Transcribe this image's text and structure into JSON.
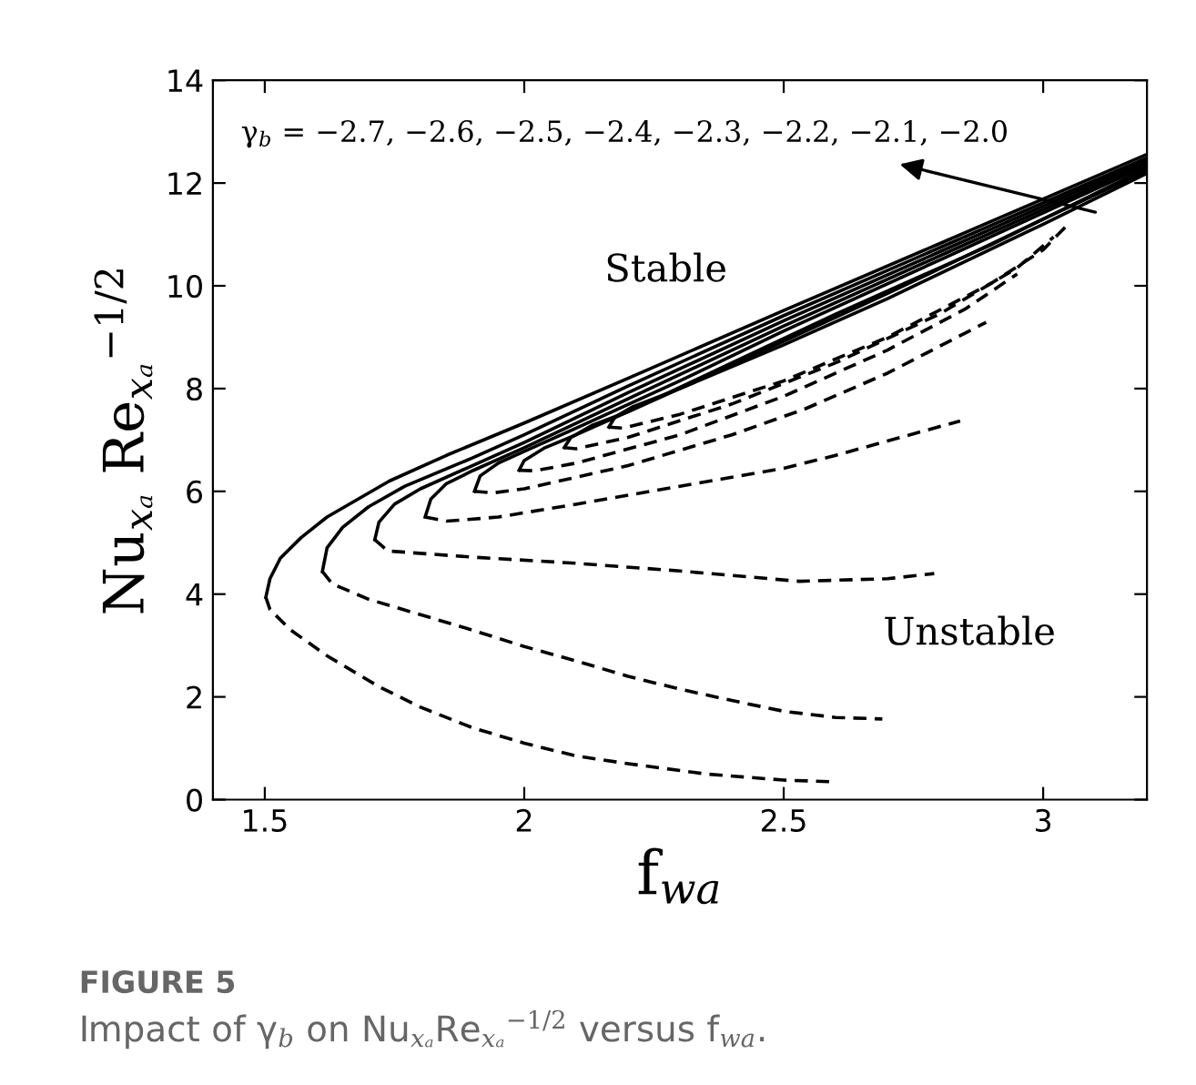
{
  "chart_data": {
    "type": "line",
    "xlabel": "f$_{wa}$",
    "ylabel": "Nu$_{xₐ}$ Re$_{xₐ}$$^{−1/2}$",
    "xlim": [
      1.4,
      3.2
    ],
    "ylim": [
      0,
      14
    ],
    "xticks": [
      1.5,
      2,
      2.5,
      3
    ],
    "yticks": [
      0,
      2,
      4,
      6,
      8,
      10,
      12,
      14
    ],
    "grid": false,
    "legend": false,
    "marker": "none",
    "annotations": [
      "γ$_{b}$ = −2.7, −2.6, −2.5, −2.4, −2.3, −2.2, −2.1, −2.0",
      "Stable",
      "Unstable",
      "FIGURE 5",
      "Impact of γ$_{b}$ on Nu$_{xₐ}$Re$_{xₐ}$$^{−1/2}$ versus f$_{wa}$."
    ],
    "series": [
      {
        "color": "#000000",
        "line_style": "solid",
        "x": [
          1.502,
          1.51,
          1.53,
          1.57,
          1.62,
          1.68,
          1.74,
          1.85,
          2.0,
          2.2,
          2.5,
          2.8,
          3.0,
          3.2
        ],
        "values": [
          3.94,
          4.3,
          4.7,
          5.1,
          5.5,
          5.85,
          6.2,
          6.7,
          7.33,
          8.2,
          9.52,
          10.82,
          11.69,
          12.56
        ]
      },
      {
        "color": "#000000",
        "line_style": "solid",
        "x": [
          1.611,
          1.62,
          1.65,
          1.7,
          1.77,
          1.9,
          2.0,
          2.2,
          2.5,
          2.8,
          3.2
        ],
        "values": [
          4.44,
          4.9,
          5.3,
          5.7,
          6.1,
          6.65,
          7.1,
          8.05,
          9.42,
          10.74,
          12.49
        ]
      },
      {
        "color": "#000000",
        "line_style": "solid",
        "x": [
          1.712,
          1.72,
          1.75,
          1.8,
          1.9,
          2.0,
          2.2,
          2.5,
          2.8,
          3.2
        ],
        "values": [
          5.06,
          5.4,
          5.75,
          6.05,
          6.5,
          6.95,
          7.92,
          9.32,
          10.66,
          12.44
        ]
      },
      {
        "color": "#000000",
        "line_style": "solid",
        "x": [
          1.809,
          1.82,
          1.85,
          1.9,
          2.0,
          2.2,
          2.5,
          2.8,
          3.2
        ],
        "values": [
          5.5,
          5.85,
          6.15,
          6.4,
          6.85,
          7.8,
          9.22,
          10.58,
          12.39
        ]
      },
      {
        "color": "#000000",
        "line_style": "solid",
        "x": [
          1.904,
          1.915,
          1.95,
          2.0,
          2.1,
          2.3,
          2.5,
          2.8,
          3.2
        ],
        "values": [
          6.0,
          6.3,
          6.55,
          6.78,
          7.23,
          8.15,
          9.12,
          10.5,
          12.34
        ]
      },
      {
        "color": "#000000",
        "line_style": "solid",
        "x": [
          1.99,
          2.0,
          2.04,
          2.1,
          2.2,
          2.4,
          2.6,
          2.9,
          3.2
        ],
        "values": [
          6.41,
          6.6,
          6.85,
          7.1,
          7.55,
          8.5,
          9.45,
          10.8,
          12.29
        ]
      },
      {
        "color": "#000000",
        "line_style": "solid",
        "x": [
          2.077,
          2.09,
          2.13,
          2.2,
          2.3,
          2.5,
          2.7,
          3.0,
          3.2
        ],
        "values": [
          6.85,
          7.05,
          7.28,
          7.55,
          8.0,
          8.92,
          9.85,
          11.3,
          12.24
        ]
      },
      {
        "color": "#000000",
        "line_style": "solid",
        "x": [
          2.163,
          2.175,
          2.21,
          2.3,
          2.5,
          2.7,
          3.0,
          3.2
        ],
        "values": [
          7.25,
          7.45,
          7.65,
          8.0,
          8.85,
          9.75,
          11.2,
          12.19
        ]
      },
      {
        "color": "#000000",
        "line_style": "dashed",
        "x": [
          1.502,
          1.51,
          1.55,
          1.62,
          1.72,
          1.8,
          1.9,
          2.0,
          2.1,
          2.2,
          2.35,
          2.5,
          2.59
        ],
        "values": [
          3.94,
          3.7,
          3.3,
          2.8,
          2.2,
          1.8,
          1.4,
          1.1,
          0.85,
          0.7,
          0.5,
          0.38,
          0.35
        ]
      },
      {
        "color": "#000000",
        "line_style": "dashed",
        "x": [
          1.611,
          1.63,
          1.7,
          1.8,
          1.9,
          2.0,
          2.1,
          2.2,
          2.3,
          2.4,
          2.5,
          2.6,
          2.69
        ],
        "values": [
          4.44,
          4.2,
          3.9,
          3.6,
          3.3,
          2.98,
          2.7,
          2.4,
          2.15,
          1.93,
          1.72,
          1.6,
          1.57
        ]
      },
      {
        "color": "#000000",
        "line_style": "dashed",
        "x": [
          1.712,
          1.737,
          1.9,
          2.1,
          2.3,
          2.53,
          2.7,
          2.79
        ],
        "values": [
          5.06,
          4.84,
          4.72,
          4.6,
          4.45,
          4.25,
          4.3,
          4.4
        ]
      },
      {
        "color": "#000000",
        "line_style": "dashed",
        "x": [
          1.809,
          1.85,
          1.95,
          2.1,
          2.3,
          2.5,
          2.6,
          2.7,
          2.84
        ],
        "values": [
          5.5,
          5.42,
          5.5,
          5.75,
          6.1,
          6.45,
          6.7,
          6.98,
          7.37
        ]
      },
      {
        "color": "#000000",
        "line_style": "dashed",
        "x": [
          1.904,
          1.94,
          2.0,
          2.2,
          2.4,
          2.54,
          2.7,
          2.89
        ],
        "values": [
          6.0,
          5.97,
          6.05,
          6.5,
          7.1,
          7.6,
          8.3,
          9.29
        ]
      },
      {
        "color": "#000000",
        "line_style": "dashed",
        "x": [
          1.99,
          2.02,
          2.1,
          2.3,
          2.5,
          2.7,
          2.85,
          2.95
        ],
        "values": [
          6.41,
          6.4,
          6.55,
          7.1,
          7.85,
          8.75,
          9.55,
          10.23
        ]
      },
      {
        "color": "#000000",
        "line_style": "dashed",
        "x": [
          2.077,
          2.1,
          2.2,
          2.4,
          2.6,
          2.8,
          2.95,
          3.02
        ],
        "values": [
          6.85,
          6.83,
          7.05,
          7.7,
          8.5,
          9.45,
          10.35,
          10.95
        ]
      },
      {
        "color": "#000000",
        "line_style": "dashed",
        "x": [
          2.163,
          2.19,
          2.3,
          2.5,
          2.7,
          2.9,
          3.0,
          3.05
        ],
        "values": [
          7.25,
          7.23,
          7.5,
          8.15,
          9.0,
          10.05,
          10.7,
          11.22
        ]
      }
    ]
  }
}
